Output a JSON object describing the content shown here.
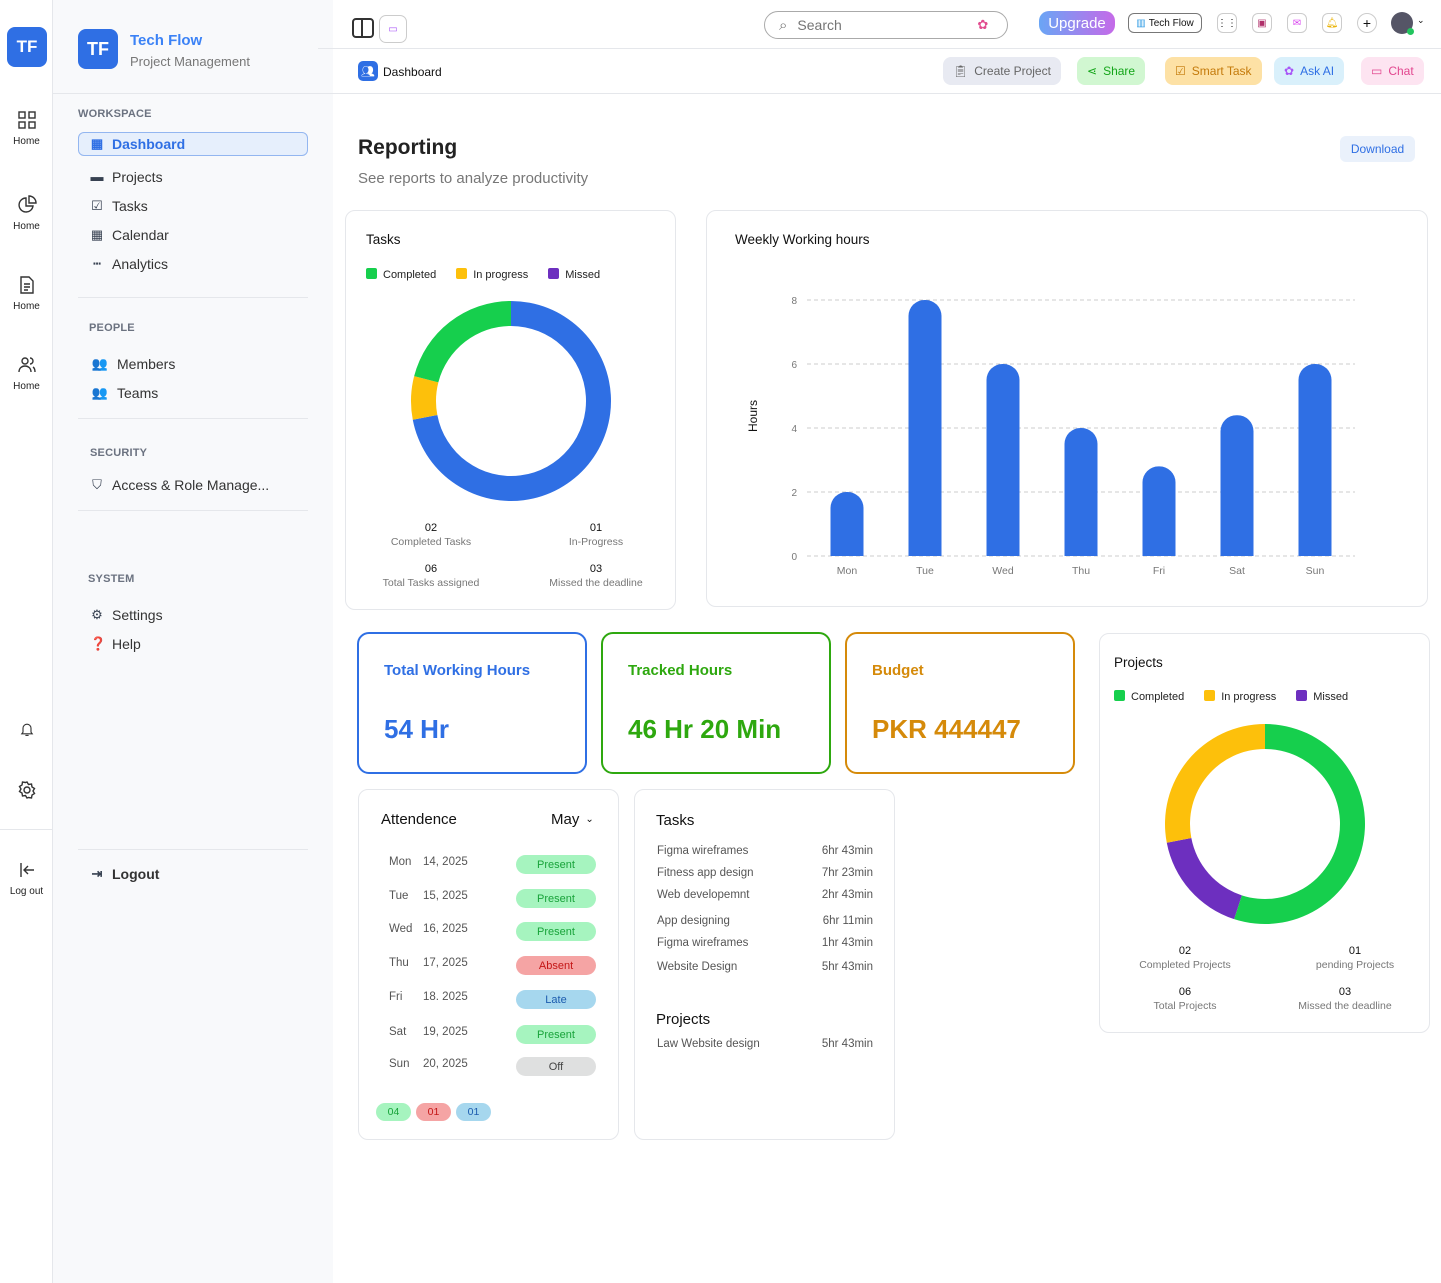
{
  "rail": {
    "logo": "TF",
    "items": [
      {
        "label": "Home",
        "icon": "grid-icon"
      },
      {
        "label": "Home",
        "icon": "pie-chart-icon"
      },
      {
        "label": "Home",
        "icon": "document-icon"
      },
      {
        "label": "Home",
        "icon": "users-icon"
      }
    ],
    "logout": "Log out"
  },
  "brand": {
    "logo": "TF",
    "name": "Tech Flow",
    "subtitle": "Project Management"
  },
  "sidebar": {
    "workspace": "WORKSPACE",
    "workspace_items": [
      {
        "label": "Dashboard",
        "icon": "dashboard-icon",
        "active": true
      },
      {
        "label": "Projects",
        "icon": "folder-icon"
      },
      {
        "label": "Tasks",
        "icon": "checkbox-icon"
      },
      {
        "label": "Calendar",
        "icon": "calendar-icon"
      },
      {
        "label": "Analytics",
        "icon": "analytics-icon"
      }
    ],
    "people": "PEOPLE",
    "people_items": [
      {
        "label": "Members",
        "icon": "members-icon"
      },
      {
        "label": "Teams",
        "icon": "teams-icon"
      }
    ],
    "security": "SECURITY",
    "security_items": [
      {
        "label": "Access & Role Manage...",
        "icon": "shield-icon"
      }
    ],
    "system": "SYSTEM",
    "system_items": [
      {
        "label": "Settings",
        "icon": "gear-icon"
      },
      {
        "label": "Help",
        "icon": "help-icon"
      }
    ],
    "logout": "Logout"
  },
  "topbar": {
    "search_placeholder": "Search",
    "upgrade": "Upgrade",
    "workspace": "Tech Flow"
  },
  "toolbar": {
    "breadcrumb": "Dashboard",
    "create_project": "Create Project",
    "share": "Share",
    "smart_task": "Smart Task",
    "ask_ai": "Ask AI",
    "chat": "Chat"
  },
  "page": {
    "title": "Reporting",
    "subtitle": "See reports to analyze productivity",
    "download": "Download"
  },
  "colors": {
    "accent": "#2f6fe4",
    "completed": "#16cf4d",
    "in_progress": "#fdc00b",
    "missed": "#6d2fbf",
    "blue": "#2f6fe4"
  },
  "tasks_card": {
    "title": "Tasks",
    "legend": [
      "Completed",
      "In progress",
      "Missed"
    ],
    "stats": [
      {
        "value": "02",
        "label": "Completed Tasks"
      },
      {
        "value": "01",
        "label": "In-Progress"
      },
      {
        "value": "06",
        "label": "Total Tasks assigned"
      },
      {
        "value": "03",
        "label": "Missed the deadline"
      }
    ]
  },
  "weekly_card": {
    "title": "Weekly Working hours"
  },
  "kpis": [
    {
      "title": "Total Working Hours",
      "value": "54 Hr",
      "color": "#2f6fe4"
    },
    {
      "title": "Tracked Hours",
      "value": "46 Hr 20 Min",
      "color": "#2ea80f"
    },
    {
      "title": "Budget",
      "value": "PKR 444447",
      "color": "#d58a0a"
    }
  ],
  "projects_card": {
    "title": "Projects",
    "legend": [
      "Completed",
      "In progress",
      "Missed"
    ],
    "stats": [
      {
        "value": "02",
        "label": "Completed Projects"
      },
      {
        "value": "01",
        "label": "pending Projects"
      },
      {
        "value": "06",
        "label": "Total Projects"
      },
      {
        "value": "03",
        "label": "Missed the deadline"
      }
    ]
  },
  "attendance": {
    "title": "Attendence",
    "month": "May",
    "rows": [
      {
        "day": "Mon",
        "date": "14, 2025",
        "status": "Present"
      },
      {
        "day": "Tue",
        "date": "15, 2025",
        "status": "Present"
      },
      {
        "day": "Wed",
        "date": "16, 2025",
        "status": "Present"
      },
      {
        "day": "Thu",
        "date": "17, 2025",
        "status": "Absent"
      },
      {
        "day": "Fri",
        "date": "18. 2025",
        "status": "Late"
      },
      {
        "day": "Sat",
        "date": "19, 2025",
        "status": "Present"
      },
      {
        "day": "Sun",
        "date": "20, 2025",
        "status": "Off"
      }
    ],
    "summary": [
      "04",
      "01",
      "01"
    ]
  },
  "tasks_list": {
    "title": "Tasks",
    "items": [
      {
        "name": "Figma wireframes",
        "time": "6hr 43min"
      },
      {
        "name": "Fitness app design",
        "time": "7hr 23min"
      },
      {
        "name": "Web developemnt",
        "time": "2hr 43min"
      },
      {
        "name": "App designing",
        "time": "6hr 11min"
      },
      {
        "name": "Figma wireframes",
        "time": "1hr 43min"
      },
      {
        "name": "Website Design",
        "time": "5hr 43min"
      }
    ],
    "projects_title": "Projects",
    "projects": [
      {
        "name": "Law Website design",
        "time": "5hr 43min"
      }
    ]
  },
  "chart_data": [
    {
      "type": "pie",
      "title": "Tasks",
      "donut": true,
      "slices": [
        {
          "color": "#2f6fe4",
          "percent": 72
        },
        {
          "name": "In progress",
          "color": "#fdc00b",
          "percent": 7
        },
        {
          "name": "Completed",
          "color": "#16cf4d",
          "percent": 21
        }
      ]
    },
    {
      "type": "bar",
      "title": "Weekly Working hours",
      "categories": [
        "Mon",
        "Tue",
        "Wed",
        "Thu",
        "Fri",
        "Sat",
        "Sun"
      ],
      "values": [
        2,
        8,
        6,
        4,
        2.8,
        4.4,
        6
      ],
      "ylabel": "Hours",
      "ylim": [
        0,
        8
      ],
      "yticks": [
        0,
        2,
        4,
        6,
        8
      ],
      "grid": true,
      "color": "#2f6fe4"
    },
    {
      "type": "pie",
      "title": "Projects",
      "donut": true,
      "slices": [
        {
          "name": "Completed",
          "color": "#16cf4d",
          "percent": 55
        },
        {
          "name": "Missed",
          "color": "#6d2fbf",
          "percent": 17
        },
        {
          "name": "In progress",
          "color": "#fdc00b",
          "percent": 28
        }
      ]
    }
  ]
}
